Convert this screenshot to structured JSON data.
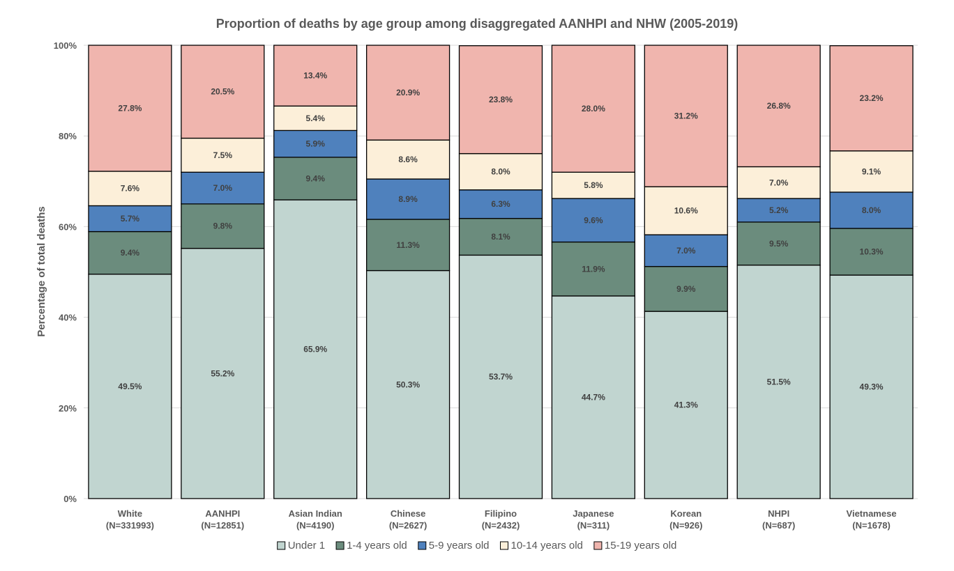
{
  "chart_data": {
    "type": "bar",
    "stacked": true,
    "title": "Proportion of deaths by age group among disaggregated AANHPI and NHW (2005-2019)",
    "ylabel": "Percentage of total deaths",
    "xlabel": "",
    "ylim": [
      0,
      100
    ],
    "yticks": [
      "0%",
      "20%",
      "40%",
      "60%",
      "80%",
      "100%"
    ],
    "ytick_values": [
      0,
      20,
      40,
      60,
      80,
      100
    ],
    "grid": true,
    "legend_position": "bottom",
    "categories": [
      [
        "White",
        "(N=331993)"
      ],
      [
        "AANHPI",
        "(N=12851)"
      ],
      [
        "Asian Indian",
        "(N=4190)"
      ],
      [
        "Chinese",
        "(N=2627)"
      ],
      [
        "Filipino",
        "(N=2432)"
      ],
      [
        "Japanese",
        "(N=311)"
      ],
      [
        "Korean",
        "(N=926)"
      ],
      [
        "NHPI",
        "(N=687)"
      ],
      [
        "Vietnamese",
        "(N=1678)"
      ]
    ],
    "series": [
      {
        "name": "Under 1",
        "color": "#c1d5d0",
        "values": [
          49.5,
          55.2,
          65.9,
          50.3,
          53.7,
          44.7,
          41.3,
          51.5,
          49.3
        ],
        "labels": [
          "49.5%",
          "55.2%",
          "65.9%",
          "50.3%",
          "53.7%",
          "44.7%",
          "41.3%",
          "51.5%",
          "49.3%"
        ]
      },
      {
        "name": "1-4 years old",
        "color": "#6b8c7d",
        "values": [
          9.4,
          9.8,
          9.4,
          11.3,
          8.1,
          11.9,
          9.9,
          9.5,
          10.3
        ],
        "labels": [
          "9.4%",
          "9.8%",
          "9.4%",
          "11.3%",
          "8.1%",
          "11.9%",
          "9.9%",
          "9.5%",
          "10.3%"
        ]
      },
      {
        "name": "5-9 years old",
        "color": "#4f81bd",
        "values": [
          5.7,
          7.0,
          5.9,
          8.9,
          6.3,
          9.6,
          7.0,
          5.2,
          8.0
        ],
        "labels": [
          "5.7%",
          "7.0%",
          "5.9%",
          "8.9%",
          "6.3%",
          "9.6%",
          "7.0%",
          "5.2%",
          "8.0%"
        ]
      },
      {
        "name": "10-14 years old",
        "color": "#fcefd9",
        "values": [
          7.6,
          7.5,
          5.4,
          8.6,
          8.0,
          5.8,
          10.6,
          7.0,
          9.1
        ],
        "labels": [
          "7.6%",
          "7.5%",
          "5.4%",
          "8.6%",
          "8.0%",
          "5.8%",
          "10.6%",
          "7.0%",
          "9.1%"
        ]
      },
      {
        "name": "15-19 years old",
        "color": "#f0b5ae",
        "values": [
          27.8,
          20.5,
          13.4,
          20.9,
          23.8,
          28.0,
          31.2,
          26.8,
          23.2
        ],
        "labels": [
          "27.8%",
          "20.5%",
          "13.4%",
          "20.9%",
          "23.8%",
          "28.0%",
          "31.2%",
          "26.8%",
          "23.2%"
        ]
      }
    ]
  }
}
